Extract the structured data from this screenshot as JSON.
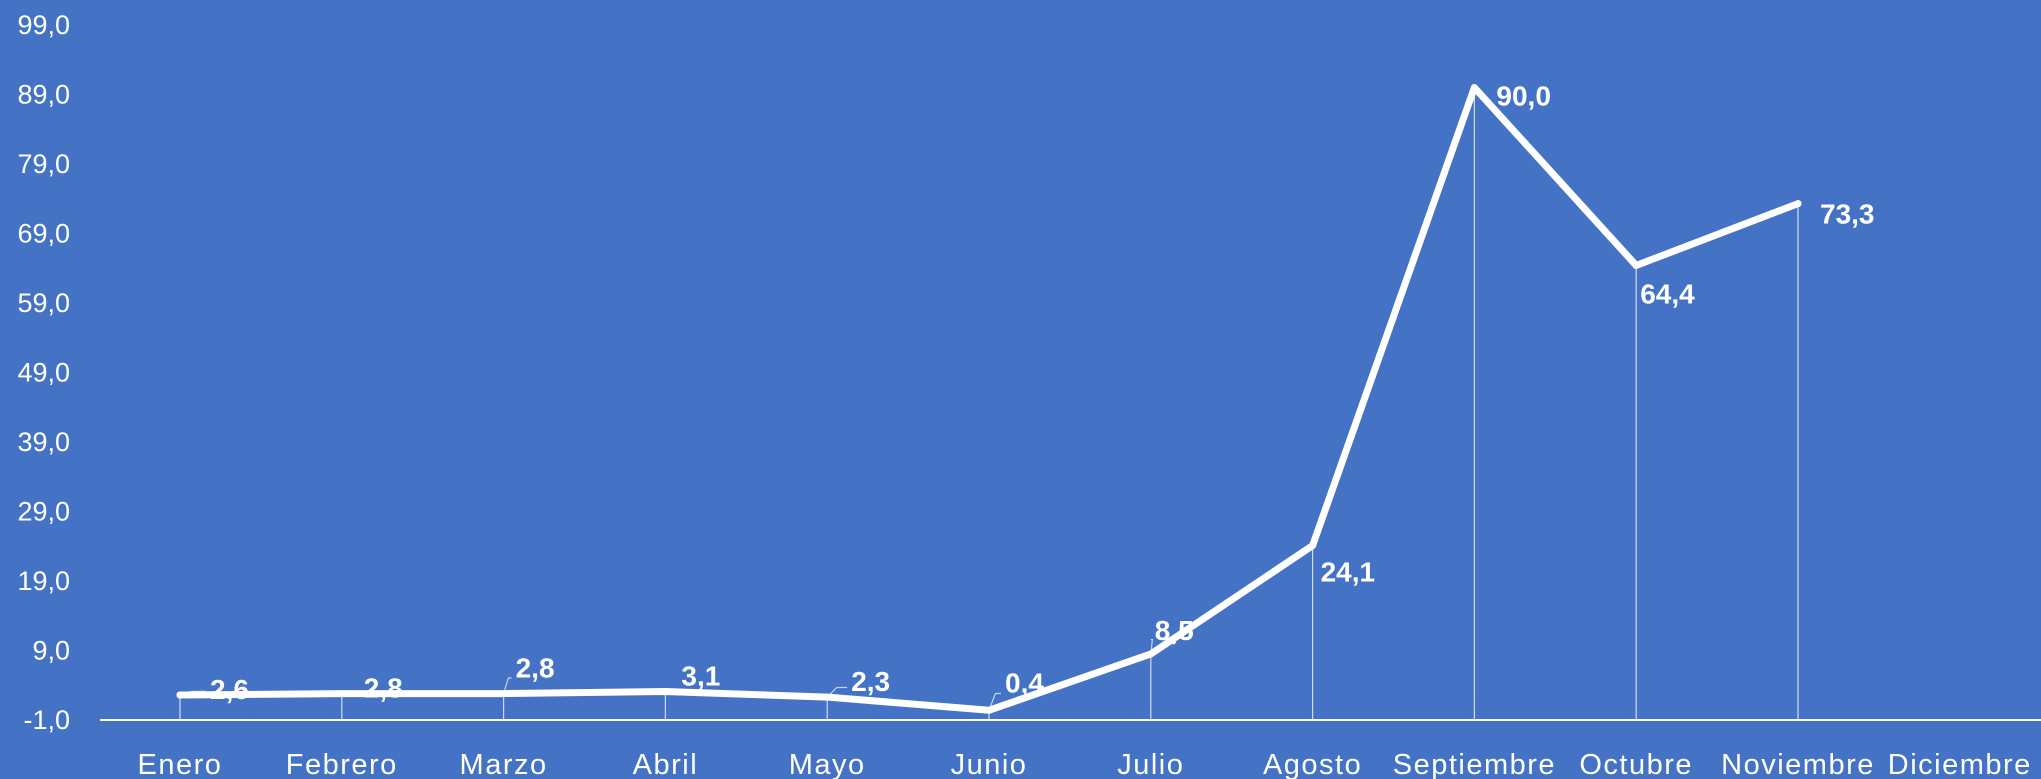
{
  "chart_data": {
    "type": "line",
    "title": "",
    "xlabel": "",
    "ylabel": "",
    "categories": [
      "Enero",
      "Febrero",
      "Marzo",
      "Abril",
      "Mayo",
      "Junio",
      "Julio",
      "Agosto",
      "Septiembre",
      "Octubre",
      "Noviembre",
      "Diciembre"
    ],
    "series": [
      {
        "values": [
          2.6,
          2.8,
          2.8,
          3.1,
          2.3,
          0.4,
          8.5,
          24.1,
          90.0,
          64.4,
          73.3,
          null
        ]
      }
    ],
    "data_labels": [
      "2,6",
      "2,8",
      "2,8",
      "3,1",
      "2,3",
      "0,4",
      "8,5",
      "24,1",
      "90,0",
      "64,4",
      "73,3",
      ""
    ],
    "ylim": [
      -1.0,
      99.0
    ],
    "yticks": [
      "-1,0",
      "9,0",
      "19,0",
      "29,0",
      "39,0",
      "49,0",
      "59,0",
      "69,0",
      "79,0",
      "89,0",
      "99,0"
    ],
    "grid": false,
    "drop_lines": true,
    "legend": "none",
    "colors": {
      "background": "#4472C4",
      "line": "#FFFFFF",
      "text": "#FFFFFF"
    }
  }
}
